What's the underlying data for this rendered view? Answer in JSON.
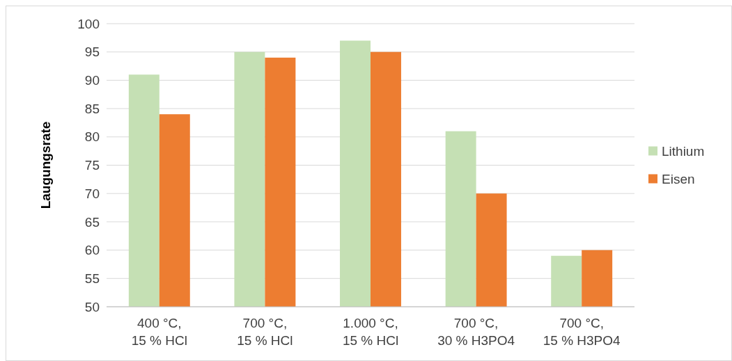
{
  "chart_data": {
    "type": "bar",
    "ylabel": "Laugungsrate",
    "categories": [
      "400 °C, 15 % HCl",
      "700 °C, 15 % HCl",
      "1.000 °C, 15 % HCl",
      "700 °C, 30 % H3PO4",
      "700 °C, 15 % H3PO4"
    ],
    "series": [
      {
        "name": "Lithium",
        "color": "#c5e0b4",
        "values": [
          91,
          95,
          97,
          81,
          59
        ]
      },
      {
        "name": "Eisen",
        "color": "#ed7d31",
        "values": [
          84,
          94,
          95,
          70,
          60
        ]
      }
    ],
    "ylim": [
      50,
      100
    ],
    "yticks": [
      50,
      55,
      60,
      65,
      70,
      75,
      80,
      85,
      90,
      95,
      100
    ],
    "grid": "y",
    "legend": "right"
  }
}
